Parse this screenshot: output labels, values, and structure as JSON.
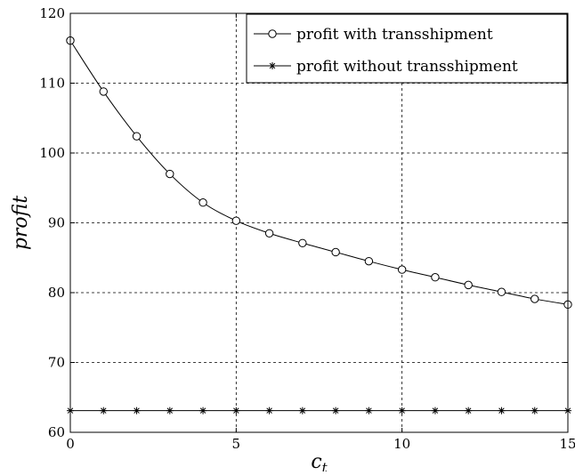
{
  "chart_data": {
    "type": "line",
    "title": "",
    "xlabel": "c_t",
    "ylabel": "profit",
    "xlim": [
      0,
      15
    ],
    "ylim": [
      60,
      120
    ],
    "xticks": [
      0,
      5,
      10,
      15
    ],
    "yticks": [
      60,
      70,
      80,
      90,
      100,
      110,
      120
    ],
    "grid": true,
    "grid_style": "dashed",
    "legend_position": "top-right",
    "x": [
      0,
      1,
      2,
      3,
      4,
      5,
      6,
      7,
      8,
      9,
      10,
      11,
      12,
      13,
      14,
      15
    ],
    "series": [
      {
        "name": "profit with transshipment",
        "marker": "circle",
        "color": "#000000",
        "values": [
          116.1,
          108.8,
          102.4,
          97.0,
          92.9,
          90.3,
          88.5,
          87.1,
          85.8,
          84.5,
          83.3,
          82.2,
          81.1,
          80.1,
          79.1,
          78.3
        ]
      },
      {
        "name": "profit without transshipment",
        "marker": "star",
        "color": "#000000",
        "values": [
          63.1,
          63.1,
          63.1,
          63.1,
          63.1,
          63.1,
          63.1,
          63.1,
          63.1,
          63.1,
          63.1,
          63.1,
          63.1,
          63.1,
          63.1,
          63.1
        ]
      }
    ]
  }
}
